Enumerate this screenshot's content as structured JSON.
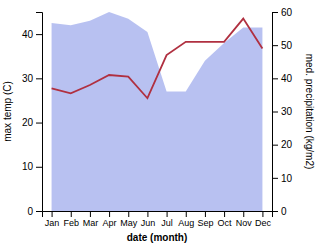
{
  "chart_data": {
    "type": "combo",
    "categories": [
      "Jan",
      "Feb",
      "Mar",
      "Apr",
      "May",
      "Jun",
      "Jul",
      "Aug",
      "Sep",
      "Oct",
      "Nov",
      "Dec"
    ],
    "xlabel": "date (month)",
    "ylabel": "max temp (C)",
    "y2label": "med. precipitation (kg/m2)",
    "ylim": [
      0,
      45
    ],
    "yticks": [
      0,
      10,
      20,
      30,
      40
    ],
    "y2lim": [
      0,
      60
    ],
    "y2ticks": [
      0,
      10,
      20,
      30,
      40,
      50,
      60
    ],
    "series": [
      {
        "type": "area",
        "color": "#b0baf0",
        "values": [
          42.5,
          42.0,
          43.0,
          45.0,
          43.5,
          40.5,
          27.0,
          27.0,
          34.0,
          38.0,
          41.5,
          41.5
        ]
      },
      {
        "type": "line",
        "color": "#b03040",
        "axis": "y2",
        "values": [
          37.0,
          35.5,
          38.0,
          41.0,
          40.5,
          34.0,
          47.0,
          51.0,
          51.0,
          51.0,
          58.0,
          49.0
        ]
      }
    ]
  }
}
